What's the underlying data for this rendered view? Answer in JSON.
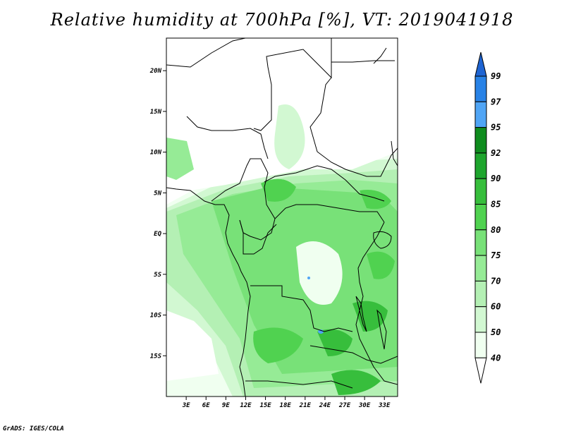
{
  "title": "Relative humidity at 700hPa [%], VT: 2019041918",
  "credit": "GrADS: IGES/COLA",
  "map": {
    "lon_range": [
      0,
      35
    ],
    "lat_range": [
      -20,
      24
    ],
    "lat_ticks": [
      {
        "value": 20,
        "label": "20N"
      },
      {
        "value": 15,
        "label": "15N"
      },
      {
        "value": 10,
        "label": "10N"
      },
      {
        "value": 5,
        "label": "5N"
      },
      {
        "value": 0,
        "label": "EQ"
      },
      {
        "value": -5,
        "label": "5S"
      },
      {
        "value": -10,
        "label": "10S"
      },
      {
        "value": -15,
        "label": "15S"
      }
    ],
    "lon_ticks": [
      {
        "value": 3,
        "label": "3E"
      },
      {
        "value": 6,
        "label": "6E"
      },
      {
        "value": 9,
        "label": "9E"
      },
      {
        "value": 12,
        "label": "12E"
      },
      {
        "value": 15,
        "label": "15E"
      },
      {
        "value": 18,
        "label": "18E"
      },
      {
        "value": 21,
        "label": "21E"
      },
      {
        "value": 24,
        "label": "24E"
      },
      {
        "value": 27,
        "label": "27E"
      },
      {
        "value": 30,
        "label": "30E"
      },
      {
        "value": 33,
        "label": "33E"
      }
    ]
  },
  "colorbar": {
    "labels": [
      "99",
      "97",
      "95",
      "92",
      "90",
      "85",
      "80",
      "75",
      "70",
      "60",
      "50",
      "40"
    ],
    "colors": [
      "#1e64d2",
      "#2882e6",
      "#50a5f5",
      "#0f8c1e",
      "#1ea52d",
      "#37be3c",
      "#50d250",
      "#78e178",
      "#96eb96",
      "#b4f0b4",
      "#d2f8d2",
      "#f0fff0"
    ]
  }
}
